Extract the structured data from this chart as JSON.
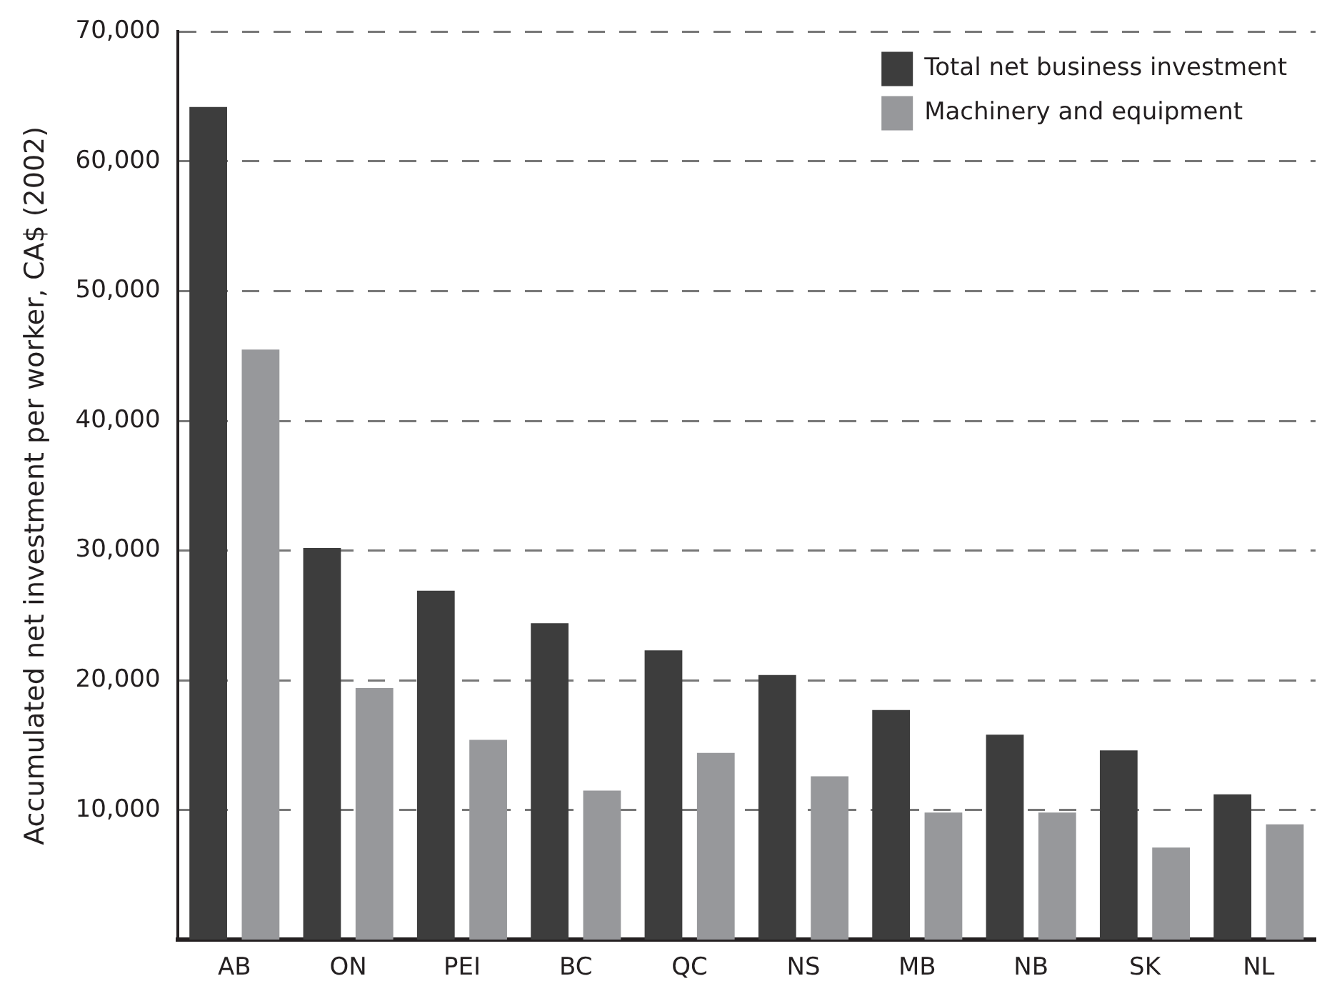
{
  "chart_data": {
    "type": "bar",
    "ylabel": "Accumulated net investment per worker, CA$ (2002)",
    "categories": [
      "AB",
      "ON",
      "PEI",
      "BC",
      "QC",
      "NS",
      "MB",
      "NB",
      "SK",
      "NL"
    ],
    "series": [
      {
        "name": "Total net business investment",
        "color": "#3d3d3d",
        "values": [
          64200,
          30200,
          26900,
          24400,
          22300,
          20400,
          17700,
          15800,
          14600,
          11200
        ]
      },
      {
        "name": "Machinery and equipment",
        "color": "#97989b",
        "values": [
          45500,
          19400,
          15400,
          11500,
          14400,
          12600,
          9800,
          9800,
          7100,
          8900
        ]
      }
    ],
    "ylim": [
      0,
      70000
    ],
    "yticks": [
      {
        "value": 10000,
        "label": "10,000"
      },
      {
        "value": 20000,
        "label": "20,000"
      },
      {
        "value": 30000,
        "label": "30,000"
      },
      {
        "value": 40000,
        "label": "40,000"
      },
      {
        "value": 50000,
        "label": "50,000"
      },
      {
        "value": 60000,
        "label": "60,000"
      },
      {
        "value": 70000,
        "label": "70,000"
      }
    ],
    "grid": "y",
    "legend": "top right"
  }
}
